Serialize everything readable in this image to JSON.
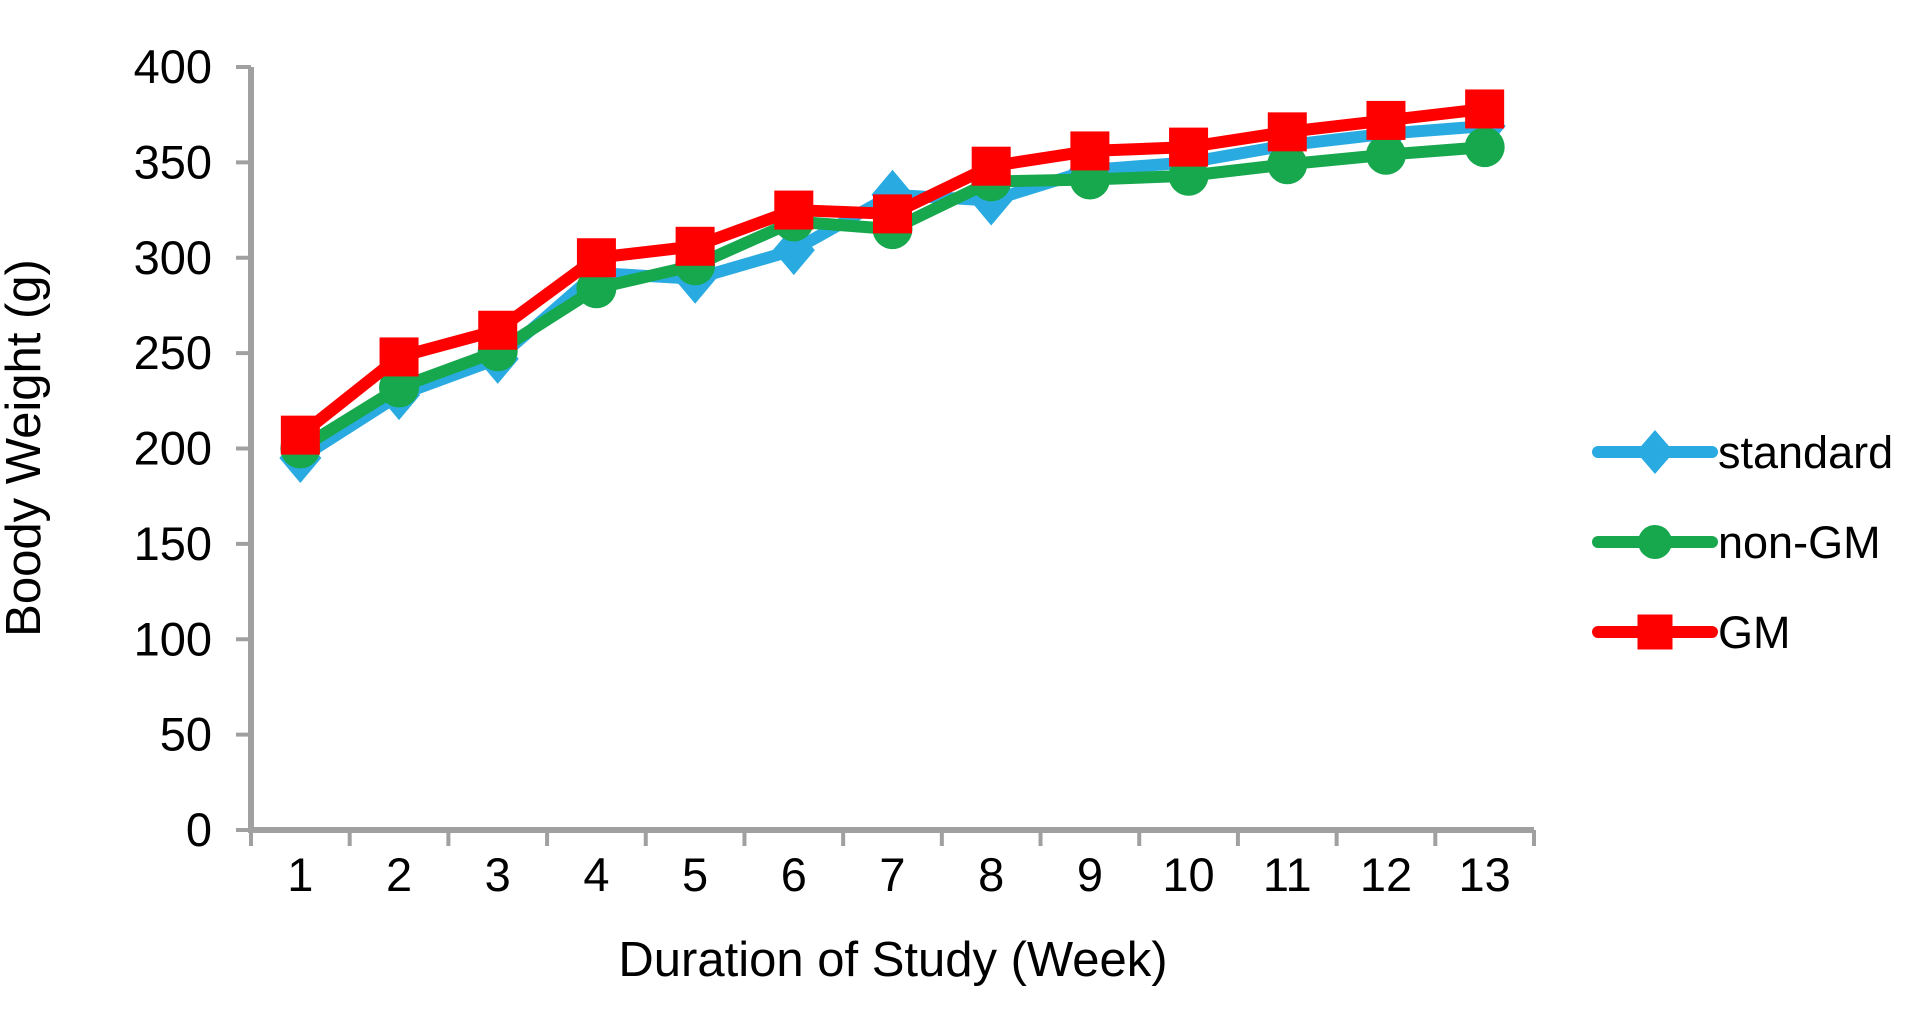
{
  "chart_data": {
    "type": "line",
    "title": "",
    "xlabel": "Duration of Study (Week)",
    "ylabel": "Boody Weight (g)",
    "x": [
      1,
      2,
      3,
      4,
      5,
      6,
      7,
      8,
      9,
      10,
      11,
      12,
      13
    ],
    "ylim": [
      0,
      400
    ],
    "yticks": [
      0,
      50,
      100,
      150,
      200,
      250,
      300,
      350,
      400
    ],
    "grid": false,
    "legend_position": "right",
    "background_color": "#FFFFFF",
    "axis_color": "#A0A0A0",
    "text_color": "#000000",
    "series": [
      {
        "name": "standard",
        "marker": "diamond",
        "color": "#29ABE2",
        "values": [
          195,
          228,
          247,
          292,
          289,
          304,
          333,
          330,
          346,
          350,
          359,
          365,
          369
        ]
      },
      {
        "name": "non-GM",
        "marker": "circle",
        "color": "#17A74D",
        "values": [
          200,
          232,
          251,
          284,
          296,
          319,
          315,
          340,
          341,
          343,
          349,
          354,
          358
        ]
      },
      {
        "name": "GM",
        "marker": "square",
        "color": "#FF0000",
        "values": [
          207,
          248,
          262,
          300,
          306,
          325,
          323,
          348,
          356,
          358,
          366,
          372,
          378
        ]
      }
    ]
  }
}
